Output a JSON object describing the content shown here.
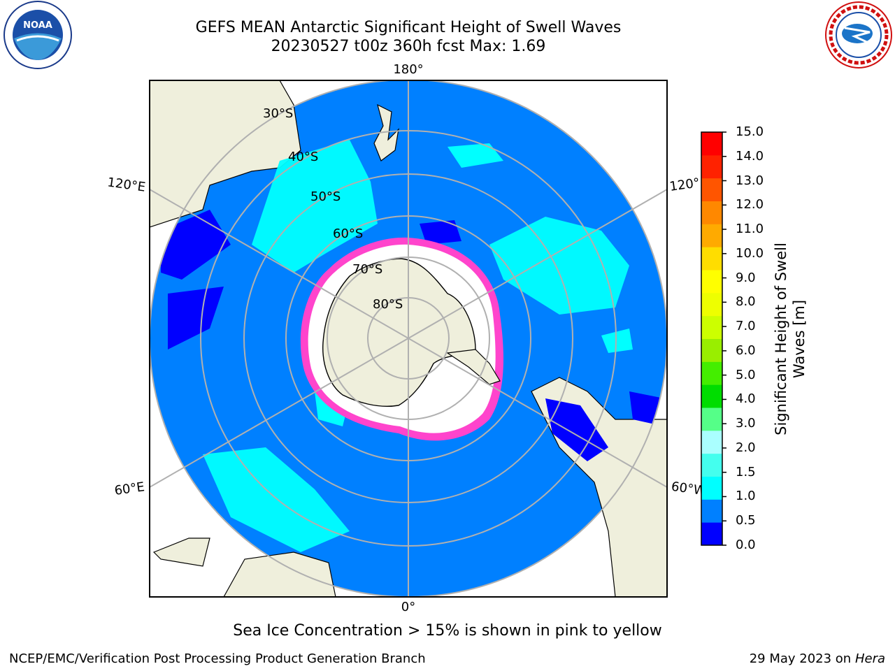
{
  "title_line1": "GEFS MEAN Antarctic Significant Height of Swell Waves",
  "title_line2": "20230527 t00z 360h fcst   Max: 1.69",
  "logos": {
    "left": "noaa-logo",
    "left_text": "NOAA",
    "right": "nws-logo"
  },
  "map": {
    "projection": "south-polar-stereographic",
    "longitude_labels": [
      "180°",
      "120°E",
      "120°",
      "60°E",
      "60°W",
      "0°"
    ],
    "latitude_labels": [
      "30°S",
      "40°S",
      "50°S",
      "60°S",
      "70°S",
      "80°S"
    ],
    "colors": {
      "ocean_low": "#0080ff",
      "ocean_mid": "#00ffff",
      "ocean_lowest": "#0000ff",
      "land": "#efefdc",
      "ice": "#ffffff",
      "ice_edge": "#ff44cc"
    }
  },
  "colorbar": {
    "label": "Significant Height of Swell\nWaves [m]",
    "ticks": [
      "15.0",
      "14.0",
      "13.0",
      "12.0",
      "11.0",
      "10.0",
      "9.0",
      "8.0",
      "7.0",
      "6.0",
      "5.0",
      "4.0",
      "3.0",
      "2.0",
      "1.5",
      "1.0",
      "0.5",
      "0.0"
    ],
    "colors": [
      "#0000ff",
      "#0080ff",
      "#00ffff",
      "#44ffee",
      "#aaffff",
      "#55ff88",
      "#00dd00",
      "#44ee00",
      "#99ee00",
      "#ccff00",
      "#eeff00",
      "#ffff00",
      "#ffdd00",
      "#ffaa00",
      "#ff8800",
      "#ff5500",
      "#ff2200",
      "#ff0000"
    ]
  },
  "footer_note": "Sea Ice Concentration > 15% is shown in pink to yellow",
  "footer_left": "NCEP/EMC/Verification Post Processing Product Generation Branch",
  "footer_date": "29 May 2023 on",
  "footer_machine": "Hera"
}
